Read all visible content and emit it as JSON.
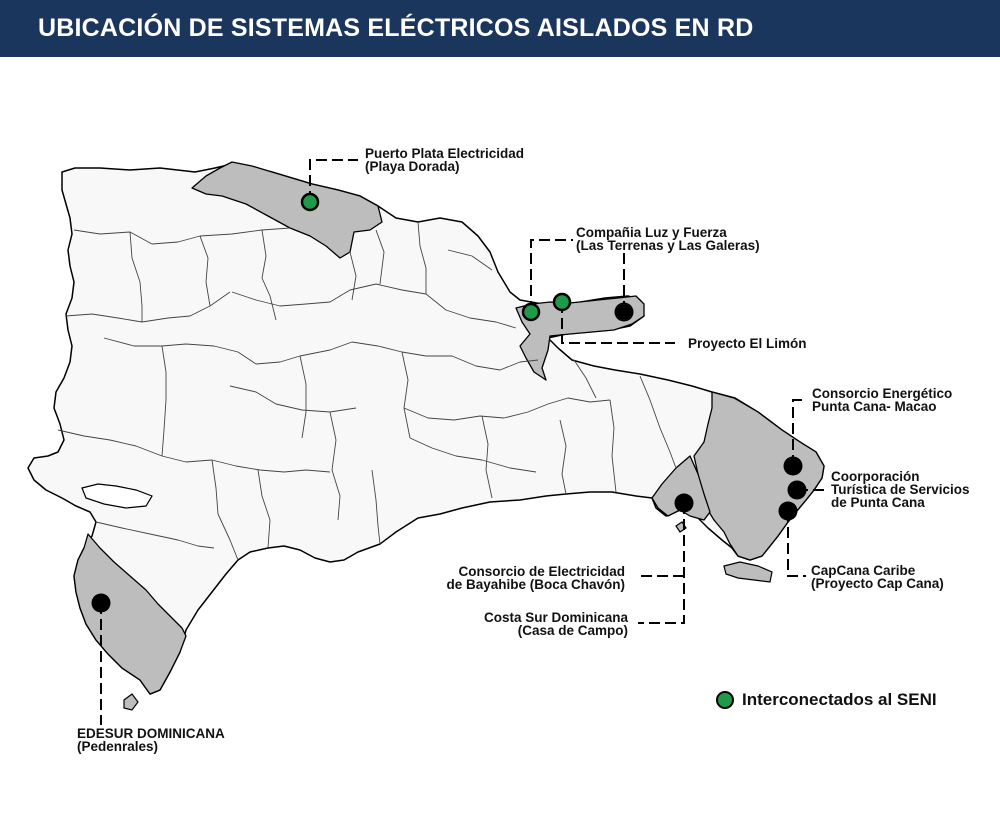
{
  "title": "UBICACIÓN DE SISTEMAS ELÉCTRICOS AISLADOS EN RD",
  "colors": {
    "header_bg": "#1b365d",
    "map_fill": "#f8f8f8",
    "highlight_fill": "#bdbdbd",
    "seni_green": "#1e9a4a",
    "isolated_black": "#000000"
  },
  "labels": {
    "puerto_plata": [
      "Puerto Plata Electricidad",
      "(Playa Dorada)"
    ],
    "luz_fuerza": [
      "Compañia Luz y Fuerza",
      "(Las Terrenas y Las Galeras)"
    ],
    "el_limon": [
      "Proyecto El Limón"
    ],
    "punta_cana_macao": [
      "Consorcio Energético",
      "Punta Cana- Macao"
    ],
    "corporacion_turistica": [
      "Coorporación",
      "Turística de Servicios",
      "de Punta Cana"
    ],
    "capcana": [
      "CapCana Caribe",
      "(Proyecto Cap Cana)"
    ],
    "bayahibe": [
      "Consorcio de Electricidad",
      "de Bayahibe (Boca Chavón)"
    ],
    "costa_sur": [
      "Costa Sur Dominicana",
      "(Casa de Campo)"
    ],
    "edesur": [
      "EDESUR DOMINICANA",
      "(Pedenrales)"
    ]
  },
  "legend": {
    "label": "Interconectados al SENI",
    "marker": "green-circle"
  }
}
